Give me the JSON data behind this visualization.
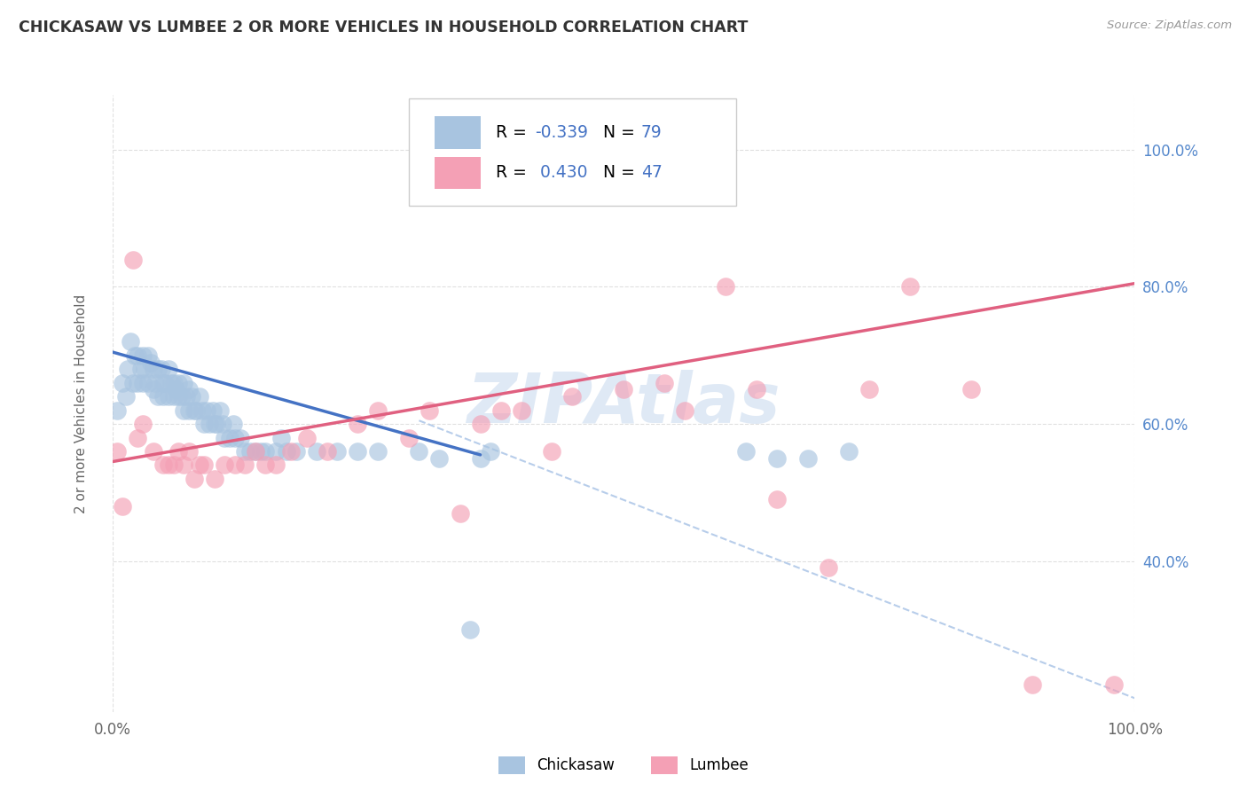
{
  "title": "CHICKASAW VS LUMBEE 2 OR MORE VEHICLES IN HOUSEHOLD CORRELATION CHART",
  "source": "Source: ZipAtlas.com",
  "ylabel": "2 or more Vehicles in Household",
  "chickasaw_color": "#a8c4e0",
  "lumbee_color": "#f4a0b5",
  "chickasaw_line_color": "#4472c4",
  "lumbee_line_color": "#e06080",
  "dashed_line_color": "#b0c8e8",
  "background_color": "#ffffff",
  "grid_color": "#dddddd",
  "watermark": "ZIPAtlas",
  "right_yticks": [
    0.4,
    0.6,
    0.8,
    1.0
  ],
  "right_yticklabels": [
    "40.0%",
    "60.0%",
    "80.0%",
    "100.0%"
  ],
  "xtick_labels": [
    "0.0%",
    "100.0%"
  ],
  "ylim": [
    0.18,
    1.08
  ],
  "xlim": [
    0.0,
    1.0
  ],
  "chickasaw_line_x": [
    0.0,
    0.36
  ],
  "chickasaw_line_y": [
    0.705,
    0.555
  ],
  "lumbee_line_x": [
    0.0,
    1.0
  ],
  "lumbee_line_y": [
    0.545,
    0.805
  ],
  "dashed_line_x": [
    0.3,
    1.0
  ],
  "dashed_line_y": [
    0.605,
    0.2
  ],
  "chickasaw_x": [
    0.005,
    0.01,
    0.013,
    0.015,
    0.018,
    0.02,
    0.022,
    0.025,
    0.025,
    0.028,
    0.03,
    0.03,
    0.032,
    0.035,
    0.035,
    0.038,
    0.04,
    0.04,
    0.042,
    0.045,
    0.045,
    0.048,
    0.05,
    0.05,
    0.052,
    0.055,
    0.055,
    0.058,
    0.06,
    0.06,
    0.062,
    0.065,
    0.065,
    0.068,
    0.07,
    0.07,
    0.072,
    0.075,
    0.075,
    0.078,
    0.08,
    0.082,
    0.085,
    0.088,
    0.09,
    0.092,
    0.095,
    0.098,
    0.1,
    0.102,
    0.105,
    0.108,
    0.11,
    0.115,
    0.118,
    0.12,
    0.125,
    0.13,
    0.135,
    0.14,
    0.145,
    0.15,
    0.16,
    0.165,
    0.17,
    0.18,
    0.2,
    0.22,
    0.24,
    0.26,
    0.3,
    0.32,
    0.36,
    0.37,
    0.62,
    0.65,
    0.68,
    0.72,
    0.35
  ],
  "chickasaw_y": [
    0.62,
    0.66,
    0.64,
    0.68,
    0.72,
    0.66,
    0.7,
    0.66,
    0.7,
    0.68,
    0.66,
    0.7,
    0.68,
    0.66,
    0.7,
    0.69,
    0.65,
    0.68,
    0.66,
    0.64,
    0.68,
    0.68,
    0.64,
    0.66,
    0.66,
    0.64,
    0.68,
    0.66,
    0.64,
    0.66,
    0.65,
    0.64,
    0.66,
    0.64,
    0.62,
    0.66,
    0.64,
    0.62,
    0.65,
    0.64,
    0.62,
    0.62,
    0.64,
    0.62,
    0.6,
    0.62,
    0.6,
    0.62,
    0.6,
    0.6,
    0.62,
    0.6,
    0.58,
    0.58,
    0.6,
    0.58,
    0.58,
    0.56,
    0.56,
    0.56,
    0.56,
    0.56,
    0.56,
    0.58,
    0.56,
    0.56,
    0.56,
    0.56,
    0.56,
    0.56,
    0.56,
    0.55,
    0.55,
    0.56,
    0.56,
    0.55,
    0.55,
    0.56,
    0.3
  ],
  "lumbee_x": [
    0.005,
    0.01,
    0.02,
    0.025,
    0.03,
    0.04,
    0.05,
    0.055,
    0.06,
    0.065,
    0.07,
    0.075,
    0.08,
    0.085,
    0.09,
    0.1,
    0.11,
    0.12,
    0.13,
    0.14,
    0.15,
    0.16,
    0.175,
    0.19,
    0.21,
    0.24,
    0.26,
    0.29,
    0.31,
    0.34,
    0.36,
    0.38,
    0.4,
    0.43,
    0.45,
    0.5,
    0.54,
    0.56,
    0.6,
    0.63,
    0.65,
    0.7,
    0.74,
    0.78,
    0.84,
    0.9,
    0.98
  ],
  "lumbee_y": [
    0.56,
    0.48,
    0.84,
    0.58,
    0.6,
    0.56,
    0.54,
    0.54,
    0.54,
    0.56,
    0.54,
    0.56,
    0.52,
    0.54,
    0.54,
    0.52,
    0.54,
    0.54,
    0.54,
    0.56,
    0.54,
    0.54,
    0.56,
    0.58,
    0.56,
    0.6,
    0.62,
    0.58,
    0.62,
    0.47,
    0.6,
    0.62,
    0.62,
    0.56,
    0.64,
    0.65,
    0.66,
    0.62,
    0.8,
    0.65,
    0.49,
    0.39,
    0.65,
    0.8,
    0.65,
    0.22,
    0.22
  ]
}
